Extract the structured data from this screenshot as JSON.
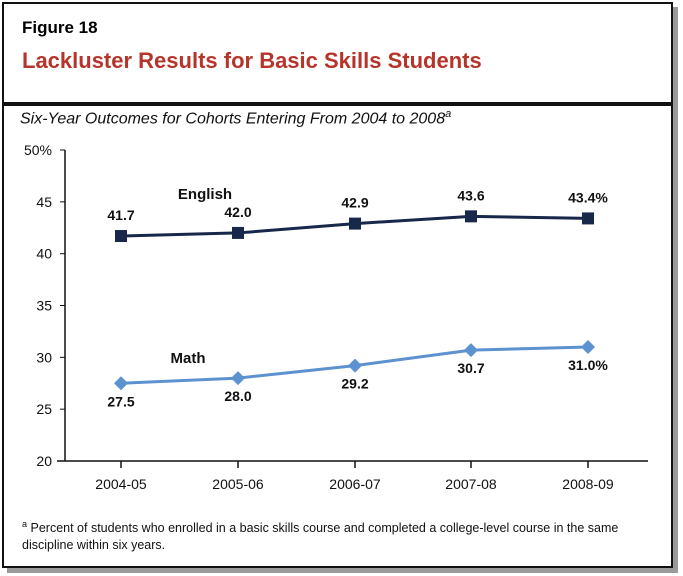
{
  "figure_label": "Figure 18",
  "title": "Lackluster Results for Basic Skills Students",
  "subtitle": "Six-Year Outcomes for Cohorts Entering From 2004 to 2008",
  "subtitle_marker": "a",
  "footnote_marker": "a",
  "footnote": "Percent of students who enrolled in a basic skills course and completed a college-level course in the same discipline within six years.",
  "chart_data": {
    "type": "line",
    "categories": [
      "2004-05",
      "2005-06",
      "2006-07",
      "2007-08",
      "2008-09"
    ],
    "ylim": [
      20,
      50
    ],
    "yticks": [
      20,
      25,
      30,
      35,
      40,
      45,
      50
    ],
    "ytick_labels": [
      "20",
      "25",
      "30",
      "35",
      "40",
      "45",
      "50%"
    ],
    "grid": false,
    "series": [
      {
        "name": "English",
        "color": "#17284a",
        "marker": "square",
        "values": [
          41.7,
          42.0,
          42.9,
          43.6,
          43.4
        ],
        "labels": [
          "41.7",
          "42.0",
          "42.9",
          "43.6",
          "43.4%"
        ]
      },
      {
        "name": "Math",
        "color": "#5b92cf",
        "marker": "diamond",
        "values": [
          27.5,
          28.0,
          29.2,
          30.7,
          31.0
        ],
        "labels": [
          "27.5",
          "28.0",
          "29.2",
          "30.7",
          "31.0%"
        ]
      }
    ]
  }
}
